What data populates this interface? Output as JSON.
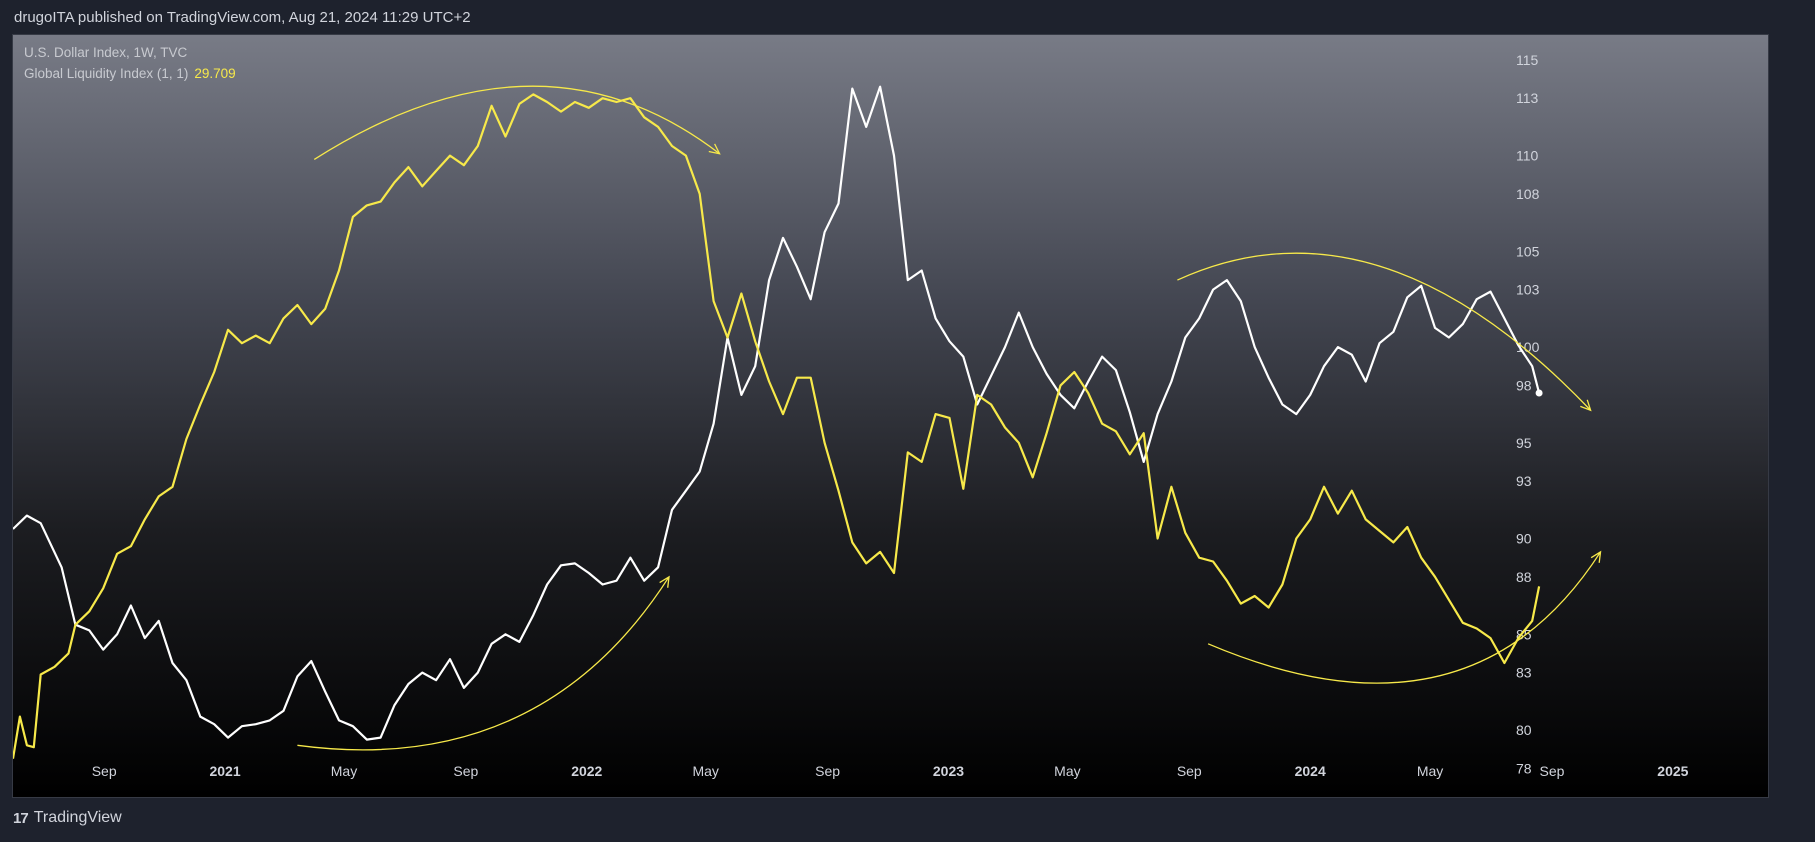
{
  "header": {
    "publish_text": "drugoITA published on TradingView.com, Aug 21, 2024 11:29 UTC+2"
  },
  "legend": {
    "series1": "U.S. Dollar Index, 1W, TVC",
    "series2": "Global Liquidity Index (1, 1)",
    "series2_value": "29.709"
  },
  "footer": {
    "brand": "TradingView"
  },
  "colors": {
    "dxy_line": "#ffffff",
    "gli_line": "#f7e94a",
    "annotation": "#f7e94a",
    "axis_text": "#d1d4dc"
  },
  "chart_data": {
    "type": "line",
    "y_axis_ticks": [
      "115",
      "113",
      "110",
      "108",
      "105",
      "103",
      "100",
      "98",
      "95",
      "93",
      "90",
      "88",
      "85",
      "83",
      "80",
      "78"
    ],
    "x_axis_ticks": [
      {
        "label": "Sep",
        "year": false,
        "date": "2020-09"
      },
      {
        "label": "2021",
        "year": true,
        "date": "2021-01"
      },
      {
        "label": "May",
        "year": false,
        "date": "2021-05"
      },
      {
        "label": "Sep",
        "year": false,
        "date": "2021-09"
      },
      {
        "label": "2022",
        "year": true,
        "date": "2022-01"
      },
      {
        "label": "May",
        "year": false,
        "date": "2022-05"
      },
      {
        "label": "Sep",
        "year": false,
        "date": "2022-09"
      },
      {
        "label": "2023",
        "year": true,
        "date": "2023-01"
      },
      {
        "label": "May",
        "year": false,
        "date": "2023-05"
      },
      {
        "label": "Sep",
        "year": false,
        "date": "2023-09"
      },
      {
        "label": "2024",
        "year": true,
        "date": "2024-01"
      },
      {
        "label": "May",
        "year": false,
        "date": "2024-05"
      },
      {
        "label": "Sep",
        "year": false,
        "date": "2024-09"
      },
      {
        "label": "2025",
        "year": true,
        "date": "2025-01"
      }
    ],
    "ylim": [
      76.5,
      116.3
    ],
    "xlim": [
      "2020-06-01",
      "2025-04-07"
    ],
    "series": [
      {
        "name": "U.S. Dollar Index, 1W, TVC",
        "color": "#ffffff",
        "points": [
          [
            "2020-06-01",
            90.5
          ],
          [
            "2020-06-15",
            91.2
          ],
          [
            "2020-06-29",
            90.8
          ],
          [
            "2020-07-20",
            88.5
          ],
          [
            "2020-08-03",
            85.5
          ],
          [
            "2020-08-17",
            85.2
          ],
          [
            "2020-08-31",
            84.2
          ],
          [
            "2020-09-14",
            85.0
          ],
          [
            "2020-09-28",
            86.5
          ],
          [
            "2020-10-12",
            84.8
          ],
          [
            "2020-10-26",
            85.7
          ],
          [
            "2020-11-09",
            83.5
          ],
          [
            "2020-11-23",
            82.6
          ],
          [
            "2020-12-07",
            80.7
          ],
          [
            "2020-12-21",
            80.3
          ],
          [
            "2021-01-04",
            79.6
          ],
          [
            "2021-01-18",
            80.2
          ],
          [
            "2021-02-01",
            80.3
          ],
          [
            "2021-02-15",
            80.5
          ],
          [
            "2021-03-01",
            81.0
          ],
          [
            "2021-03-15",
            82.8
          ],
          [
            "2021-03-29",
            83.6
          ],
          [
            "2021-04-12",
            82.0
          ],
          [
            "2021-04-26",
            80.5
          ],
          [
            "2021-05-10",
            80.2
          ],
          [
            "2021-05-24",
            79.5
          ],
          [
            "2021-06-07",
            79.6
          ],
          [
            "2021-06-21",
            81.3
          ],
          [
            "2021-07-05",
            82.4
          ],
          [
            "2021-07-19",
            83.0
          ],
          [
            "2021-08-02",
            82.6
          ],
          [
            "2021-08-16",
            83.7
          ],
          [
            "2021-08-30",
            82.2
          ],
          [
            "2021-09-13",
            83.0
          ],
          [
            "2021-09-27",
            84.5
          ],
          [
            "2021-10-11",
            85.0
          ],
          [
            "2021-10-25",
            84.6
          ],
          [
            "2021-11-08",
            86.0
          ],
          [
            "2021-11-22",
            87.6
          ],
          [
            "2021-12-06",
            88.6
          ],
          [
            "2021-12-20",
            88.7
          ],
          [
            "2022-01-03",
            88.2
          ],
          [
            "2022-01-17",
            87.6
          ],
          [
            "2022-01-31",
            87.8
          ],
          [
            "2022-02-14",
            89.0
          ],
          [
            "2022-02-28",
            87.8
          ],
          [
            "2022-03-14",
            88.5
          ],
          [
            "2022-03-28",
            91.5
          ],
          [
            "2022-04-11",
            92.5
          ],
          [
            "2022-04-25",
            93.5
          ],
          [
            "2022-05-09",
            96.0
          ],
          [
            "2022-05-23",
            100.5
          ],
          [
            "2022-06-06",
            97.5
          ],
          [
            "2022-06-20",
            99.0
          ],
          [
            "2022-07-04",
            103.5
          ],
          [
            "2022-07-18",
            105.7
          ],
          [
            "2022-08-01",
            104.2
          ],
          [
            "2022-08-15",
            102.5
          ],
          [
            "2022-08-29",
            106.0
          ],
          [
            "2022-09-12",
            107.5
          ],
          [
            "2022-09-26",
            113.5
          ],
          [
            "2022-10-10",
            111.5
          ],
          [
            "2022-10-24",
            113.6
          ],
          [
            "2022-11-07",
            110.0
          ],
          [
            "2022-11-21",
            103.5
          ],
          [
            "2022-12-05",
            104.0
          ],
          [
            "2022-12-19",
            101.5
          ],
          [
            "2023-01-02",
            100.3
          ],
          [
            "2023-01-16",
            99.5
          ],
          [
            "2023-01-30",
            97.0
          ],
          [
            "2023-02-13",
            98.5
          ],
          [
            "2023-02-27",
            100.0
          ],
          [
            "2023-03-13",
            101.8
          ],
          [
            "2023-03-27",
            100.0
          ],
          [
            "2023-04-10",
            98.6
          ],
          [
            "2023-04-24",
            97.5
          ],
          [
            "2023-05-08",
            96.8
          ],
          [
            "2023-05-22",
            98.2
          ],
          [
            "2023-06-05",
            99.5
          ],
          [
            "2023-06-19",
            98.8
          ],
          [
            "2023-07-03",
            96.6
          ],
          [
            "2023-07-17",
            94.0
          ],
          [
            "2023-07-31",
            96.5
          ],
          [
            "2023-08-14",
            98.2
          ],
          [
            "2023-08-28",
            100.5
          ],
          [
            "2023-09-11",
            101.5
          ],
          [
            "2023-09-25",
            103.0
          ],
          [
            "2023-10-09",
            103.5
          ],
          [
            "2023-10-23",
            102.4
          ],
          [
            "2023-11-06",
            100.0
          ],
          [
            "2023-11-20",
            98.4
          ],
          [
            "2023-12-04",
            97.0
          ],
          [
            "2023-12-18",
            96.5
          ],
          [
            "2024-01-01",
            97.5
          ],
          [
            "2024-01-15",
            99.0
          ],
          [
            "2024-01-29",
            100.0
          ],
          [
            "2024-02-12",
            99.6
          ],
          [
            "2024-02-26",
            98.2
          ],
          [
            "2024-03-11",
            100.2
          ],
          [
            "2024-03-25",
            100.8
          ],
          [
            "2024-04-08",
            102.6
          ],
          [
            "2024-04-22",
            103.2
          ],
          [
            "2024-05-06",
            101.0
          ],
          [
            "2024-05-20",
            100.5
          ],
          [
            "2024-06-03",
            101.2
          ],
          [
            "2024-06-17",
            102.5
          ],
          [
            "2024-07-01",
            102.9
          ],
          [
            "2024-07-15",
            101.5
          ],
          [
            "2024-07-29",
            100.1
          ],
          [
            "2024-08-12",
            99.0
          ],
          [
            "2024-08-19",
            97.6
          ]
        ]
      },
      {
        "name": "Global Liquidity Index (1, 1)",
        "color": "#f7e94a",
        "points": [
          [
            "2020-06-01",
            78.5
          ],
          [
            "2020-06-08",
            80.7
          ],
          [
            "2020-06-15",
            79.2
          ],
          [
            "2020-06-22",
            79.1
          ],
          [
            "2020-06-29",
            82.9
          ],
          [
            "2020-07-13",
            83.3
          ],
          [
            "2020-07-27",
            84.0
          ],
          [
            "2020-08-03",
            85.5
          ],
          [
            "2020-08-17",
            86.2
          ],
          [
            "2020-08-31",
            87.4
          ],
          [
            "2020-09-14",
            89.2
          ],
          [
            "2020-09-28",
            89.6
          ],
          [
            "2020-10-12",
            91.0
          ],
          [
            "2020-10-26",
            92.2
          ],
          [
            "2020-11-09",
            92.7
          ],
          [
            "2020-11-23",
            95.2
          ],
          [
            "2020-12-07",
            97.0
          ],
          [
            "2020-12-21",
            98.7
          ],
          [
            "2021-01-04",
            100.9
          ],
          [
            "2021-01-18",
            100.2
          ],
          [
            "2021-02-01",
            100.6
          ],
          [
            "2021-02-15",
            100.2
          ],
          [
            "2021-03-01",
            101.5
          ],
          [
            "2021-03-15",
            102.2
          ],
          [
            "2021-03-29",
            101.2
          ],
          [
            "2021-04-12",
            102.0
          ],
          [
            "2021-04-26",
            104.0
          ],
          [
            "2021-05-10",
            106.8
          ],
          [
            "2021-05-24",
            107.4
          ],
          [
            "2021-06-07",
            107.6
          ],
          [
            "2021-06-21",
            108.6
          ],
          [
            "2021-07-05",
            109.4
          ],
          [
            "2021-07-19",
            108.4
          ],
          [
            "2021-08-02",
            109.2
          ],
          [
            "2021-08-16",
            110.0
          ],
          [
            "2021-08-30",
            109.5
          ],
          [
            "2021-09-13",
            110.5
          ],
          [
            "2021-09-27",
            112.6
          ],
          [
            "2021-10-11",
            111.0
          ],
          [
            "2021-10-25",
            112.7
          ],
          [
            "2021-11-08",
            113.2
          ],
          [
            "2021-11-22",
            112.8
          ],
          [
            "2021-12-06",
            112.3
          ],
          [
            "2021-12-20",
            112.8
          ],
          [
            "2022-01-03",
            112.5
          ],
          [
            "2022-01-17",
            113.0
          ],
          [
            "2022-01-31",
            112.8
          ],
          [
            "2022-02-14",
            113.0
          ],
          [
            "2022-02-28",
            112.0
          ],
          [
            "2022-03-14",
            111.5
          ],
          [
            "2022-03-28",
            110.5
          ],
          [
            "2022-04-11",
            110.0
          ],
          [
            "2022-04-25",
            108.0
          ],
          [
            "2022-05-09",
            102.4
          ],
          [
            "2022-05-23",
            100.5
          ],
          [
            "2022-06-06",
            102.8
          ],
          [
            "2022-06-20",
            100.3
          ],
          [
            "2022-07-04",
            98.2
          ],
          [
            "2022-07-18",
            96.5
          ],
          [
            "2022-08-01",
            98.4
          ],
          [
            "2022-08-15",
            98.4
          ],
          [
            "2022-08-29",
            95.0
          ],
          [
            "2022-09-12",
            92.5
          ],
          [
            "2022-09-26",
            89.8
          ],
          [
            "2022-10-10",
            88.7
          ],
          [
            "2022-10-24",
            89.3
          ],
          [
            "2022-11-07",
            88.2
          ],
          [
            "2022-11-21",
            94.5
          ],
          [
            "2022-12-05",
            94.0
          ],
          [
            "2022-12-19",
            96.5
          ],
          [
            "2023-01-02",
            96.3
          ],
          [
            "2023-01-16",
            92.6
          ],
          [
            "2023-01-30",
            97.5
          ],
          [
            "2023-02-13",
            97.0
          ],
          [
            "2023-02-27",
            95.8
          ],
          [
            "2023-03-13",
            95.0
          ],
          [
            "2023-03-27",
            93.2
          ],
          [
            "2023-04-10",
            95.5
          ],
          [
            "2023-04-24",
            98.0
          ],
          [
            "2023-05-08",
            98.7
          ],
          [
            "2023-05-22",
            97.6
          ],
          [
            "2023-06-05",
            96.0
          ],
          [
            "2023-06-19",
            95.6
          ],
          [
            "2023-07-03",
            94.4
          ],
          [
            "2023-07-17",
            95.5
          ],
          [
            "2023-07-31",
            90.0
          ],
          [
            "2023-08-14",
            92.7
          ],
          [
            "2023-08-28",
            90.3
          ],
          [
            "2023-09-11",
            89.0
          ],
          [
            "2023-09-25",
            88.8
          ],
          [
            "2023-10-09",
            87.8
          ],
          [
            "2023-10-23",
            86.6
          ],
          [
            "2023-11-06",
            87.0
          ],
          [
            "2023-11-20",
            86.4
          ],
          [
            "2023-12-04",
            87.6
          ],
          [
            "2023-12-18",
            90.0
          ],
          [
            "2024-01-01",
            91.0
          ],
          [
            "2024-01-15",
            92.7
          ],
          [
            "2024-01-29",
            91.3
          ],
          [
            "2024-02-12",
            92.5
          ],
          [
            "2024-02-26",
            91.0
          ],
          [
            "2024-03-11",
            90.4
          ],
          [
            "2024-03-25",
            89.8
          ],
          [
            "2024-04-08",
            90.6
          ],
          [
            "2024-04-22",
            89.0
          ],
          [
            "2024-05-06",
            88.0
          ],
          [
            "2024-05-20",
            86.8
          ],
          [
            "2024-06-03",
            85.6
          ],
          [
            "2024-06-17",
            85.3
          ],
          [
            "2024-07-01",
            84.8
          ],
          [
            "2024-07-15",
            83.5
          ],
          [
            "2024-07-29",
            84.8
          ],
          [
            "2024-08-12",
            85.7
          ],
          [
            "2024-08-19",
            87.5
          ]
        ]
      }
    ],
    "annotations": [
      {
        "kind": "arc-arrow",
        "color": "#f7e94a",
        "points": [
          [
            "2021-04-01",
            109.8
          ],
          [
            "2021-11-15",
            117.3
          ],
          [
            "2022-05-15",
            110.1
          ]
        ]
      },
      {
        "kind": "arc-arrow",
        "color": "#f7e94a",
        "points": [
          [
            "2021-03-15",
            79.2
          ],
          [
            "2021-11-15",
            77.5
          ],
          [
            "2022-03-25",
            88.0
          ]
        ]
      },
      {
        "kind": "arc-arrow",
        "color": "#f7e94a",
        "points": [
          [
            "2023-08-20",
            103.5
          ],
          [
            "2024-03-10",
            108.3
          ],
          [
            "2024-10-10",
            96.7
          ]
        ]
      },
      {
        "kind": "arc-arrow",
        "color": "#f7e94a",
        "points": [
          [
            "2023-09-20",
            84.5
          ],
          [
            "2024-06-10",
            78.7
          ],
          [
            "2024-10-20",
            89.3
          ]
        ]
      }
    ]
  }
}
